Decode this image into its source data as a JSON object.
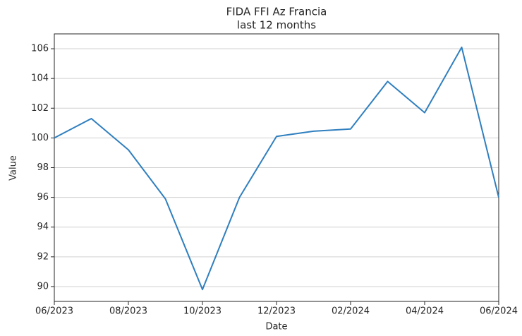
{
  "chart_data": {
    "type": "line",
    "title": "FIDA FFI Az Francia",
    "subtitle": "last 12 months",
    "x_label": "Date",
    "y_label": "Value",
    "categories": [
      "06/2023",
      null,
      "08/2023",
      null,
      "10/2023",
      null,
      "12/2023",
      null,
      "02/2024",
      null,
      "04/2024",
      null,
      "06/2024"
    ],
    "series": [
      {
        "name": "Value",
        "color": "#2f7fbf",
        "values": [
          100.0,
          101.3,
          99.2,
          95.9,
          89.8,
          96.0,
          100.1,
          100.45,
          100.6,
          103.8,
          101.7,
          106.1,
          96.0
        ]
      }
    ],
    "ylim": [
      89,
      107
    ],
    "yticks": [
      90,
      92,
      94,
      96,
      98,
      100,
      102,
      104,
      106
    ],
    "grid": true
  }
}
